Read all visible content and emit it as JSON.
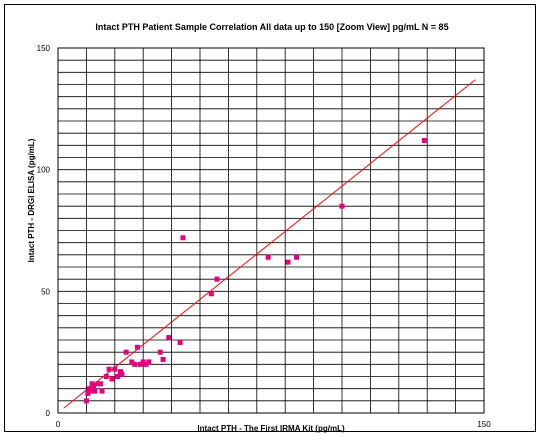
{
  "chart_data": {
    "type": "scatter",
    "title": "Intact PTH Patient Sample Correlation All data up to 150 [Zoom View] pg/mL  N = 85",
    "xlabel": "Intact PTH - The First IRMA Kit (pg/mL)",
    "ylabel": "Intact PTH - DRGI ELISA (pg/mL)",
    "xlim": [
      0,
      150
    ],
    "ylim": [
      0,
      150
    ],
    "x_ticks": [
      "0",
      "150"
    ],
    "y_ticks": [
      "0",
      "50",
      "100",
      "150"
    ],
    "grid": true,
    "point_color": "#e6007e",
    "line_color": "#ff0000",
    "regression_line": {
      "x": [
        2,
        147
      ],
      "y": [
        2,
        137
      ]
    },
    "points": [
      {
        "x": 10,
        "y": 5
      },
      {
        "x": 10.5,
        "y": 8
      },
      {
        "x": 11,
        "y": 10
      },
      {
        "x": 11.5,
        "y": 9
      },
      {
        "x": 12,
        "y": 12
      },
      {
        "x": 12.5,
        "y": 11
      },
      {
        "x": 13,
        "y": 9
      },
      {
        "x": 14,
        "y": 12
      },
      {
        "x": 15,
        "y": 12
      },
      {
        "x": 15.5,
        "y": 9
      },
      {
        "x": 17,
        "y": 15
      },
      {
        "x": 18,
        "y": 18
      },
      {
        "x": 19,
        "y": 14
      },
      {
        "x": 20,
        "y": 18
      },
      {
        "x": 21,
        "y": 15
      },
      {
        "x": 22,
        "y": 17
      },
      {
        "x": 22.5,
        "y": 16
      },
      {
        "x": 24,
        "y": 25
      },
      {
        "x": 26,
        "y": 21
      },
      {
        "x": 27,
        "y": 20
      },
      {
        "x": 28,
        "y": 27
      },
      {
        "x": 29,
        "y": 20
      },
      {
        "x": 30,
        "y": 21
      },
      {
        "x": 31,
        "y": 20
      },
      {
        "x": 32,
        "y": 21
      },
      {
        "x": 36,
        "y": 25
      },
      {
        "x": 37,
        "y": 22
      },
      {
        "x": 39,
        "y": 31
      },
      {
        "x": 43,
        "y": 29
      },
      {
        "x": 44,
        "y": 72
      },
      {
        "x": 54,
        "y": 49
      },
      {
        "x": 56,
        "y": 55
      },
      {
        "x": 74,
        "y": 64
      },
      {
        "x": 81,
        "y": 62
      },
      {
        "x": 84,
        "y": 64
      },
      {
        "x": 100,
        "y": 85
      },
      {
        "x": 129,
        "y": 112
      }
    ]
  }
}
